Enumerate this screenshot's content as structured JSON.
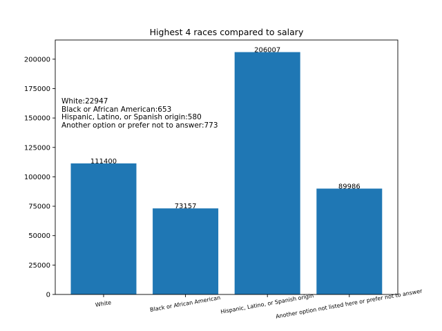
{
  "chart_data": {
    "type": "bar",
    "title": "Highest 4 races compared to salary",
    "categories": [
      "White",
      "Black or African American",
      "Hispanic, Latino, or Spanish origin",
      "Another option not listed here or prefer not to answer"
    ],
    "values": [
      111400,
      73157,
      206007,
      89986
    ],
    "data_labels": [
      "111400",
      "73157",
      "206007",
      "89986"
    ],
    "xlabel": "",
    "ylabel": "",
    "ylim": [
      0,
      216307
    ],
    "yticks": [
      0,
      25000,
      50000,
      75000,
      100000,
      125000,
      150000,
      175000,
      200000
    ],
    "ytick_labels": [
      "0",
      "25000",
      "50000",
      "75000",
      "100000",
      "125000",
      "150000",
      "175000",
      "200000"
    ],
    "bar_color": "#1f77b4",
    "grid": false,
    "annotations": [
      "White:22947",
      "Black or African American:653",
      "Hispanic, Latino, or Spanish origin:580",
      "Another option or prefer not to answer:773"
    ]
  }
}
